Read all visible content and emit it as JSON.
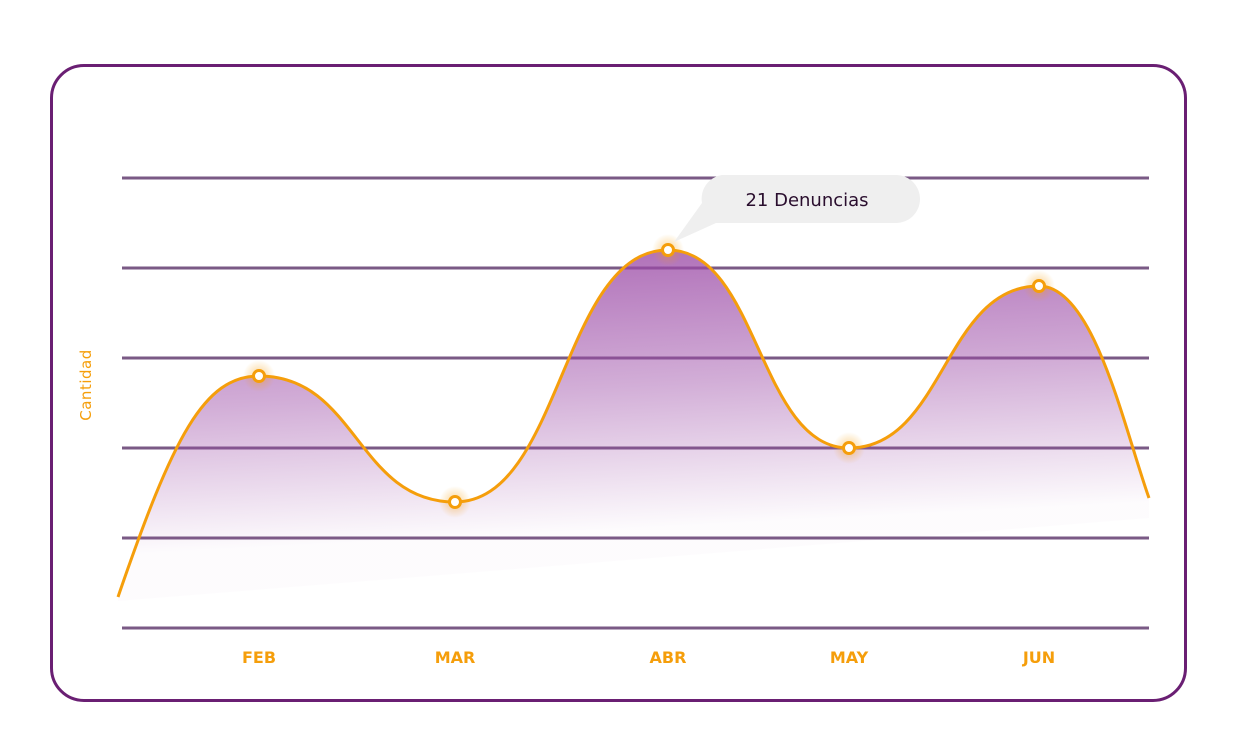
{
  "chart_data": {
    "type": "area",
    "title": "",
    "xlabel": "",
    "ylabel": "Cantidad",
    "categories": [
      "FEB",
      "MAR",
      "ABR",
      "MAY",
      "JUN"
    ],
    "series": [
      {
        "name": "Denuncias",
        "values": [
          14,
          7,
          21,
          10,
          19
        ]
      }
    ],
    "ylim": [
      0,
      25
    ],
    "grid": true,
    "annotation": {
      "category": "ABR",
      "text": "21 Denuncias"
    },
    "colors": {
      "line": "#f59e0b",
      "fill": "#9b4aa6",
      "grid": "#7a5a85",
      "border": "#6a1f73",
      "label": "#f59e0b"
    }
  }
}
